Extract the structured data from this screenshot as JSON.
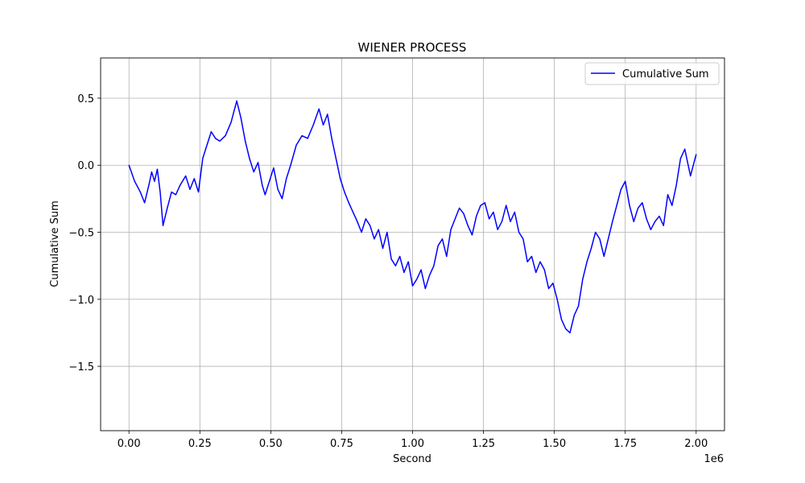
{
  "chart_data": {
    "type": "line",
    "title": "WIENER PROCESS",
    "xlabel": "Second",
    "ylabel": "Cumulative Sum",
    "x_offset_text": "1e6",
    "xlim": [
      -100000,
      2100000
    ],
    "ylim": [
      -1.98,
      0.8
    ],
    "x_ticks": [
      0,
      250000,
      500000,
      750000,
      1000000,
      1250000,
      1500000,
      1750000,
      2000000
    ],
    "x_tick_labels": [
      "0.00",
      "0.25",
      "0.50",
      "0.75",
      "1.00",
      "1.25",
      "1.50",
      "1.75",
      "2.00"
    ],
    "y_ticks": [
      0.5,
      0.0,
      -0.5,
      -1.0,
      -1.5
    ],
    "y_tick_labels": [
      "0.5",
      "0.0",
      "−0.5",
      "−1.0",
      "−1.5"
    ],
    "grid": true,
    "legend_position": "top-right",
    "series": [
      {
        "name": "Cumulative Sum",
        "color": "#0000ff",
        "x": [
          0,
          20000,
          40000,
          55000,
          70000,
          80000,
          90000,
          100000,
          110000,
          120000,
          135000,
          150000,
          165000,
          180000,
          200000,
          215000,
          230000,
          245000,
          260000,
          275000,
          290000,
          305000,
          320000,
          340000,
          360000,
          380000,
          395000,
          410000,
          425000,
          440000,
          455000,
          470000,
          480000,
          495000,
          510000,
          525000,
          540000,
          555000,
          570000,
          590000,
          610000,
          630000,
          650000,
          670000,
          685000,
          700000,
          715000,
          730000,
          745000,
          760000,
          775000,
          790000,
          805000,
          820000,
          835000,
          850000,
          865000,
          880000,
          895000,
          910000,
          925000,
          940000,
          955000,
          970000,
          985000,
          1000000,
          1015000,
          1030000,
          1045000,
          1060000,
          1075000,
          1090000,
          1105000,
          1120000,
          1135000,
          1150000,
          1165000,
          1180000,
          1195000,
          1210000,
          1225000,
          1240000,
          1255000,
          1270000,
          1285000,
          1300000,
          1315000,
          1330000,
          1345000,
          1360000,
          1375000,
          1390000,
          1405000,
          1420000,
          1435000,
          1450000,
          1465000,
          1480000,
          1495000,
          1510000,
          1525000,
          1540000,
          1555000,
          1570000,
          1585000,
          1600000,
          1615000,
          1630000,
          1645000,
          1660000,
          1675000,
          1690000,
          1705000,
          1720000,
          1735000,
          1750000,
          1765000,
          1780000,
          1795000,
          1810000,
          1825000,
          1840000,
          1855000,
          1870000,
          1885000,
          1900000,
          1915000,
          1930000,
          1945000,
          1960000,
          1970000,
          1980000,
          1990000,
          2000000
        ],
        "y": [
          0.0,
          -0.12,
          -0.2,
          -0.28,
          -0.15,
          -0.05,
          -0.12,
          -0.03,
          -0.2,
          -0.45,
          -0.32,
          -0.2,
          -0.22,
          -0.15,
          -0.08,
          -0.18,
          -0.1,
          -0.2,
          0.05,
          0.15,
          0.25,
          0.2,
          0.18,
          0.22,
          0.32,
          0.48,
          0.35,
          0.18,
          0.05,
          -0.05,
          0.02,
          -0.15,
          -0.22,
          -0.12,
          -0.02,
          -0.18,
          -0.25,
          -0.1,
          0.0,
          0.15,
          0.22,
          0.2,
          0.3,
          0.42,
          0.3,
          0.38,
          0.2,
          0.05,
          -0.1,
          -0.2,
          -0.28,
          -0.35,
          -0.42,
          -0.5,
          -0.4,
          -0.45,
          -0.55,
          -0.48,
          -0.62,
          -0.5,
          -0.7,
          -0.75,
          -0.68,
          -0.8,
          -0.72,
          -0.9,
          -0.85,
          -0.78,
          -0.92,
          -0.82,
          -0.75,
          -0.6,
          -0.55,
          -0.68,
          -0.48,
          -0.4,
          -0.32,
          -0.36,
          -0.45,
          -0.52,
          -0.38,
          -0.3,
          -0.28,
          -0.4,
          -0.35,
          -0.48,
          -0.42,
          -0.3,
          -0.42,
          -0.35,
          -0.5,
          -0.55,
          -0.72,
          -0.68,
          -0.8,
          -0.72,
          -0.78,
          -0.92,
          -0.88,
          -1.0,
          -1.15,
          -1.22,
          -1.25,
          -1.12,
          -1.05,
          -0.85,
          -0.72,
          -0.62,
          -0.5,
          -0.55,
          -0.68,
          -0.55,
          -0.42,
          -0.3,
          -0.18,
          -0.12,
          -0.3,
          -0.42,
          -0.32,
          -0.28,
          -0.4,
          -0.48,
          -0.42,
          -0.38,
          -0.45,
          -0.22,
          -0.3,
          -0.15,
          0.05,
          0.12,
          0.02,
          -0.08,
          0.0,
          0.08
        ]
      }
    ]
  }
}
